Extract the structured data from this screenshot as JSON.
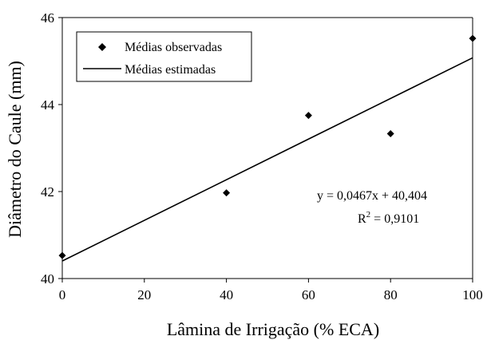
{
  "chart_data": {
    "type": "scatter",
    "xlabel": "Lâmina de Irrigação (% ECA)",
    "ylabel": "Diâmetro do Caule (mm)",
    "xlim": [
      0,
      100
    ],
    "ylim": [
      40,
      46
    ],
    "xticks": [
      0,
      20,
      40,
      60,
      80,
      100
    ],
    "yticks": [
      40,
      42,
      44,
      46
    ],
    "grid": false,
    "series": [
      {
        "name": "Médias observadas",
        "kind": "points",
        "marker": "diamond",
        "color": "#000000",
        "x": [
          0,
          40,
          60,
          80,
          100
        ],
        "y": [
          40.53,
          41.97,
          43.75,
          43.33,
          45.52
        ]
      },
      {
        "name": "Médias estimadas",
        "kind": "line",
        "color": "#000000",
        "slope": 0.0467,
        "intercept": 40.404,
        "x": [
          0,
          100
        ],
        "y": [
          40.404,
          45.074
        ]
      }
    ],
    "legend_position": "top-left",
    "annotation": {
      "equation": "y = 0,0467x + 40,404",
      "r2_prefix": "R",
      "r2_sup": "2",
      "r2_value": " = 0,9101"
    }
  }
}
